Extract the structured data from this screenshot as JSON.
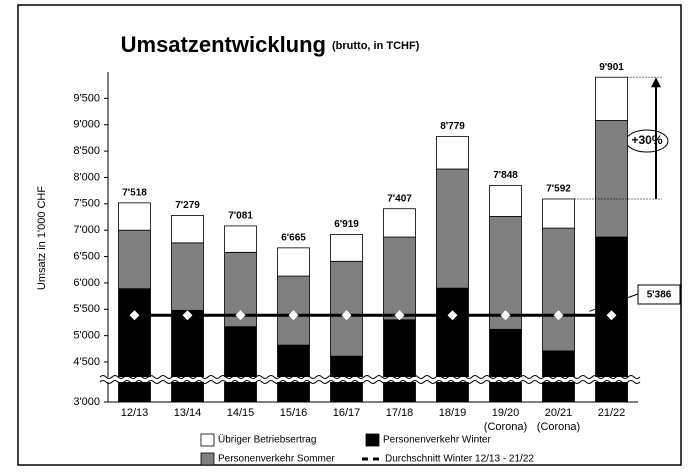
{
  "chart_data": {
    "type": "stacked_bar",
    "title": "Umsatzentwicklung",
    "subtitle": "(brutto, in TCHF)",
    "y_label": "Umsatz in 1'000 CHF",
    "categories": [
      "12/13",
      "13/14",
      "14/15",
      "15/16",
      "16/17",
      "17/18",
      "18/19",
      "19/20",
      "20/21",
      "21/22"
    ],
    "sublabels": [
      null,
      null,
      null,
      null,
      null,
      null,
      null,
      "(Corona)",
      "(Corona)",
      null
    ],
    "series": [
      {
        "name": "Personenverkehr Winter",
        "color": "#000000",
        "values": [
          5890,
          5480,
          5170,
          4820,
          4610,
          5300,
          5900,
          5120,
          4710,
          6870
        ]
      },
      {
        "name": "Personenverkehr Sommer",
        "color": "#808080",
        "values": [
          1110,
          1280,
          1410,
          1310,
          1800,
          1570,
          2260,
          2140,
          2330,
          2210
        ]
      },
      {
        "name": "Übriger Betriebsertrag",
        "color": "#ffffff",
        "values": [
          518,
          519,
          501,
          535,
          509,
          537,
          619,
          588,
          552,
          821
        ]
      }
    ],
    "totals": [
      7518,
      7279,
      7081,
      6665,
      6919,
      7407,
      8779,
      7848,
      7592,
      9901
    ],
    "total_labels": [
      "7'518",
      "7'279",
      "7'081",
      "6'665",
      "6'919",
      "7'407",
      "8'779",
      "7'848",
      "7'592",
      "9'901"
    ],
    "average": {
      "name": "Durchschnitt Winter 12/13 - 21/22",
      "value": 5386,
      "label": "5'386"
    },
    "growth_label": "+30%",
    "ylim": [
      3000,
      10000
    ],
    "axis_break": [
      3000,
      4500
    ],
    "yticks": [
      {
        "value": 3000,
        "label": "3'000"
      },
      {
        "value": 4500,
        "label": "4'500"
      },
      {
        "value": 5000,
        "label": "5'000"
      },
      {
        "value": 5500,
        "label": "5'500"
      },
      {
        "value": 6000,
        "label": "6'000"
      },
      {
        "value": 6500,
        "label": "6'500"
      },
      {
        "value": 7000,
        "label": "7'000"
      },
      {
        "value": 7500,
        "label": "7'500"
      },
      {
        "value": 8000,
        "label": "8'000"
      },
      {
        "value": 8500,
        "label": "8'500"
      },
      {
        "value": 9000,
        "label": "9'000"
      },
      {
        "value": 9500,
        "label": "9'500"
      }
    ]
  }
}
